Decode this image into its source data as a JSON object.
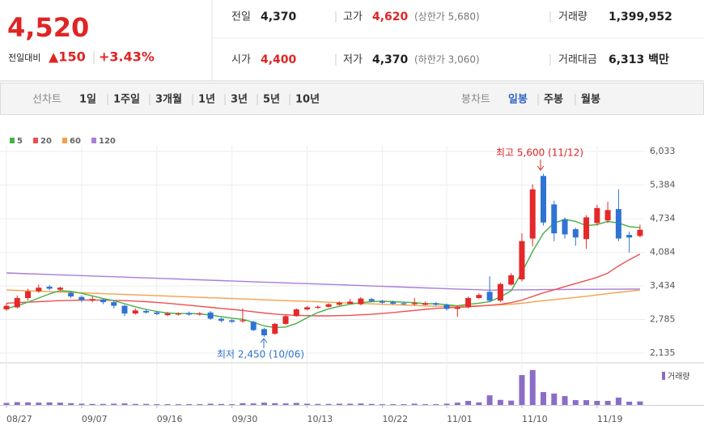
{
  "header": {
    "price": "4,520",
    "change_label": "전일대비",
    "change": "▲150",
    "change_rate": "+3.43%",
    "rows": [
      [
        {
          "label": "전일",
          "value": "4,370"
        },
        {
          "label": "고가",
          "value": "4,620",
          "note": "(상한가 5,680)"
        },
        {
          "label": "거래량",
          "value": "1,399,952"
        }
      ],
      [
        {
          "label": "시가",
          "value": "4,400"
        },
        {
          "label": "저가",
          "value": "4,370",
          "note": "(하한가 3,060)"
        },
        {
          "label": "거래대금",
          "value": "6,313 백만"
        }
      ]
    ]
  },
  "toolbar": {
    "line_chart": "선차트",
    "periods": [
      "1일",
      "1주일",
      "3개월",
      "1년",
      "3년",
      "5년",
      "10년"
    ],
    "candle_chart": "봉차트",
    "candle_periods": [
      "일봉",
      "주봉",
      "월봉"
    ]
  },
  "chart_data": {
    "type": "candlestick",
    "categories": [
      "08/27",
      null,
      null,
      null,
      null,
      null,
      null,
      "09/07",
      null,
      null,
      null,
      null,
      null,
      null,
      "09/16",
      null,
      null,
      null,
      null,
      null,
      null,
      "09/30",
      null,
      null,
      null,
      null,
      null,
      null,
      "10/13",
      null,
      null,
      null,
      null,
      null,
      null,
      "10/22",
      null,
      null,
      null,
      null,
      null,
      "11/01",
      null,
      null,
      null,
      null,
      null,
      null,
      "11/10",
      null,
      null,
      null,
      null,
      null,
      null,
      "11/19",
      null,
      null,
      null,
      null
    ],
    "open": [
      2980,
      3020,
      3200,
      3330,
      3420,
      3360,
      3300,
      3220,
      3150,
      3170,
      3120,
      3050,
      2900,
      2950,
      2920,
      2870,
      2880,
      2910,
      2880,
      2920,
      2800,
      2770,
      2750,
      2740,
      2600,
      2510,
      2700,
      2850,
      2980,
      3010,
      3030,
      3070,
      3090,
      3080,
      3180,
      3140,
      3120,
      3100,
      3080,
      3070,
      3100,
      3070,
      2990,
      3020,
      3200,
      3320,
      3150,
      3460,
      3560,
      4350,
      5560,
      5010,
      4720,
      4530,
      4340,
      4650,
      4700,
      4920,
      4420,
      4400
    ],
    "high": [
      3100,
      3250,
      3380,
      3460,
      3450,
      3420,
      3320,
      3250,
      3230,
      3180,
      3150,
      3070,
      3000,
      2980,
      2950,
      2930,
      2920,
      2940,
      2930,
      2950,
      2820,
      2790,
      3000,
      2760,
      2620,
      2720,
      2880,
      3000,
      3050,
      3060,
      3100,
      3130,
      3180,
      3220,
      3200,
      3160,
      3150,
      3130,
      3200,
      3130,
      3120,
      3090,
      3060,
      3230,
      3290,
      3620,
      3500,
      3680,
      4450,
      5400,
      5600,
      5080,
      4760,
      4560,
      4800,
      5000,
      5060,
      5300,
      4480,
      4620
    ],
    "low": [
      2950,
      3000,
      3150,
      3300,
      3350,
      3340,
      3200,
      3120,
      3120,
      3080,
      3000,
      2850,
      2880,
      2900,
      2870,
      2850,
      2860,
      2860,
      2860,
      2780,
      2730,
      2720,
      2720,
      2560,
      2450,
      2490,
      2680,
      2840,
      2960,
      2990,
      3020,
      3050,
      3080,
      3060,
      3120,
      3090,
      3070,
      3060,
      3060,
      3060,
      3050,
      2960,
      2840,
      3000,
      3180,
      3120,
      3120,
      3440,
      3520,
      4200,
      4600,
      4300,
      4350,
      4210,
      4150,
      4600,
      4650,
      4300,
      4080,
      4370
    ],
    "close": [
      3050,
      3200,
      3330,
      3400,
      3380,
      3400,
      3230,
      3160,
      3180,
      3120,
      3050,
      2900,
      2960,
      2920,
      2890,
      2900,
      2900,
      2880,
      2900,
      2800,
      2760,
      2740,
      2770,
      2580,
      2480,
      2700,
      2850,
      2980,
      3020,
      3030,
      3080,
      3110,
      3130,
      3190,
      3140,
      3110,
      3090,
      3080,
      3100,
      3100,
      3070,
      2990,
      3020,
      3200,
      3260,
      3150,
      3470,
      3640,
      4300,
      5300,
      4660,
      4450,
      4430,
      4370,
      4760,
      4940,
      4900,
      4350,
      4370,
      4520
    ],
    "up_color": "#e52828",
    "down_color": "#2f73d3",
    "series": [
      {
        "name": "5",
        "color": "#47b047",
        "values": [
          3000,
          3050,
          3120,
          3200,
          3280,
          3340,
          3330,
          3290,
          3240,
          3190,
          3150,
          3090,
          3030,
          2980,
          2940,
          2910,
          2900,
          2900,
          2895,
          2870,
          2840,
          2810,
          2790,
          2730,
          2660,
          2630,
          2640,
          2710,
          2820,
          2920,
          2990,
          3040,
          3080,
          3110,
          3130,
          3140,
          3130,
          3120,
          3110,
          3090,
          3090,
          3070,
          3050,
          3080,
          3100,
          3130,
          3220,
          3340,
          3700,
          4100,
          4450,
          4650,
          4720,
          4680,
          4600,
          4620,
          4680,
          4650,
          4580,
          4560
        ]
      },
      {
        "name": "20",
        "color": "#ef4f4f",
        "values": [
          3100,
          3110,
          3120,
          3130,
          3140,
          3150,
          3155,
          3160,
          3160,
          3160,
          3155,
          3150,
          3140,
          3130,
          3115,
          3100,
          3080,
          3060,
          3040,
          3020,
          3000,
          2980,
          2960,
          2935,
          2910,
          2890,
          2875,
          2865,
          2860,
          2855,
          2855,
          2860,
          2865,
          2875,
          2885,
          2900,
          2920,
          2940,
          2960,
          2980,
          3000,
          3010,
          3020,
          3030,
          3045,
          3060,
          3080,
          3110,
          3160,
          3230,
          3300,
          3360,
          3420,
          3480,
          3540,
          3600,
          3680,
          3820,
          3940,
          4050
        ]
      },
      {
        "name": "60",
        "color": "#f5a04a",
        "values": [
          3355,
          3347,
          3339,
          3331,
          3324,
          3316,
          3308,
          3300,
          3292,
          3284,
          3276,
          3268,
          3261,
          3253,
          3245,
          3237,
          3229,
          3221,
          3213,
          3205,
          3198,
          3190,
          3182,
          3174,
          3166,
          3158,
          3150,
          3142,
          3135,
          3127,
          3119,
          3111,
          3103,
          3095,
          3087,
          3079,
          3072,
          3064,
          3056,
          3048,
          3040,
          3040,
          3042,
          3045,
          3050,
          3058,
          3068,
          3080,
          3100,
          3125,
          3150,
          3170,
          3190,
          3210,
          3235,
          3260,
          3285,
          3310,
          3330,
          3355
        ]
      },
      {
        "name": "120",
        "color": "#a77ed8",
        "values": [
          3685,
          3678,
          3670,
          3663,
          3655,
          3648,
          3641,
          3633,
          3626,
          3618,
          3611,
          3604,
          3596,
          3589,
          3581,
          3574,
          3567,
          3559,
          3552,
          3544,
          3537,
          3530,
          3522,
          3515,
          3507,
          3500,
          3493,
          3485,
          3478,
          3470,
          3463,
          3456,
          3448,
          3441,
          3433,
          3426,
          3419,
          3411,
          3404,
          3396,
          3389,
          3382,
          3374,
          3367,
          3359,
          3352,
          3354,
          3356,
          3358,
          3360,
          3362,
          3364,
          3366,
          3367,
          3368,
          3369,
          3370,
          3371,
          3372,
          3373
        ]
      }
    ],
    "ylim": [
      1963,
      6143
    ],
    "yticks": [
      {
        "value": 2135,
        "label": "2,135"
      },
      {
        "value": 2785,
        "label": "2,785"
      },
      {
        "value": 3434,
        "label": "3,434"
      },
      {
        "value": 4084,
        "label": "4,084"
      },
      {
        "value": 4734,
        "label": "4,734"
      },
      {
        "value": 5384,
        "label": "5,384"
      },
      {
        "value": 6033,
        "label": "6,033"
      }
    ],
    "grid": true,
    "volume": {
      "label": "거래량",
      "color": "#8b6dc6",
      "ylim": [
        0,
        16000000
      ],
      "values": [
        800000,
        1100000,
        1000000,
        900000,
        1000000,
        900000,
        700000,
        500000,
        400000,
        400000,
        500000,
        600000,
        400000,
        400000,
        300000,
        300000,
        300000,
        300000,
        300000,
        500000,
        400000,
        300000,
        700000,
        600000,
        900000,
        700000,
        600000,
        800000,
        500000,
        400000,
        400000,
        500000,
        500000,
        600000,
        400000,
        300000,
        300000,
        300000,
        500000,
        300000,
        300000,
        500000,
        900000,
        1600000,
        1000000,
        3800000,
        2000000,
        1700000,
        11800000,
        13800000,
        5100000,
        4500000,
        3500000,
        1900000,
        1900000,
        1600000,
        1600000,
        2900000,
        1300000,
        1399952
      ]
    },
    "annotations": [
      "최고 5,600 (11/12)",
      "최저 2,450 (10/06)"
    ]
  }
}
